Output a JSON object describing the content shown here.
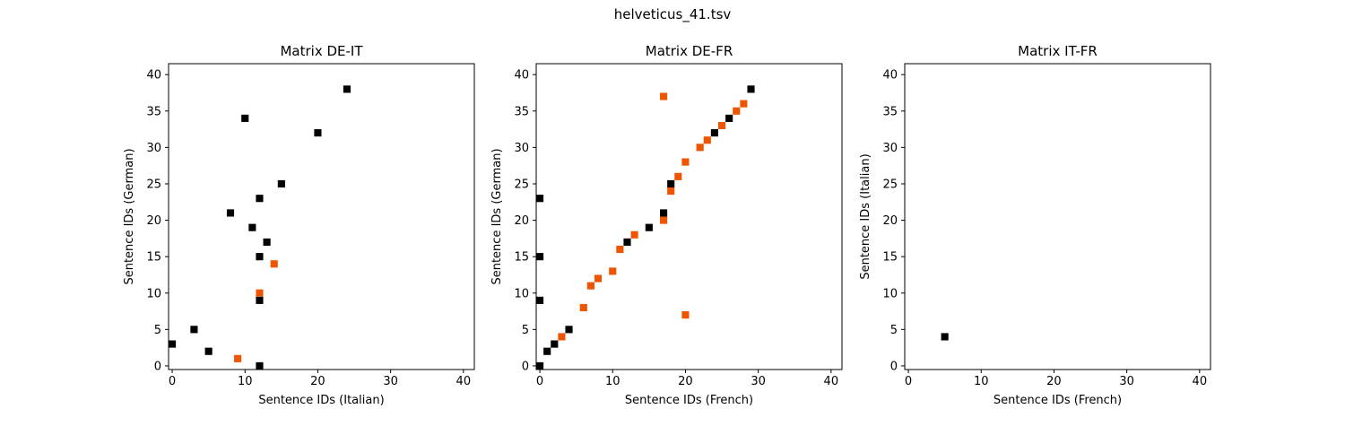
{
  "figure_title": "helveticus_41.tsv",
  "colors": {
    "black": "#000000",
    "orange": "#ee5500",
    "axes": "#000000"
  },
  "chart_data": [
    {
      "type": "scatter",
      "title": "Matrix DE-IT",
      "xlabel": "Sentence IDs (Italian)",
      "ylabel": "Sentence IDs (German)",
      "xlim": [
        -0.5,
        41.5
      ],
      "ylim": [
        41.5,
        -0.5
      ],
      "xticks": [
        0,
        10,
        20,
        30,
        40
      ],
      "yticks": [
        0,
        5,
        10,
        15,
        20,
        25,
        30,
        35,
        40
      ],
      "grid": false,
      "series": [
        {
          "color": "black",
          "points": [
            [
              12,
              0
            ],
            [
              5,
              2
            ],
            [
              0,
              3
            ],
            [
              3,
              5
            ],
            [
              12,
              9
            ],
            [
              12,
              15
            ],
            [
              13,
              17
            ],
            [
              11,
              19
            ],
            [
              8,
              21
            ],
            [
              12,
              23
            ],
            [
              15,
              25
            ],
            [
              20,
              32
            ],
            [
              10,
              34
            ],
            [
              24,
              38
            ]
          ]
        },
        {
          "color": "orange",
          "points": [
            [
              9,
              1
            ],
            [
              12,
              10
            ],
            [
              14,
              14
            ]
          ]
        }
      ]
    },
    {
      "type": "scatter",
      "title": "Matrix DE-FR",
      "xlabel": "Sentence IDs (French)",
      "ylabel": "Sentence IDs (German)",
      "xlim": [
        -0.5,
        41.5
      ],
      "ylim": [
        41.5,
        -0.5
      ],
      "xticks": [
        0,
        10,
        20,
        30,
        40
      ],
      "yticks": [
        0,
        5,
        10,
        15,
        20,
        25,
        30,
        35,
        40
      ],
      "grid": false,
      "series": [
        {
          "color": "black",
          "points": [
            [
              0,
              0
            ],
            [
              1,
              2
            ],
            [
              2,
              3
            ],
            [
              4,
              5
            ],
            [
              0,
              9
            ],
            [
              0,
              15
            ],
            [
              12,
              17
            ],
            [
              15,
              19
            ],
            [
              17,
              21
            ],
            [
              0,
              23
            ],
            [
              18,
              25
            ],
            [
              24,
              32
            ],
            [
              26,
              34
            ],
            [
              29,
              38
            ]
          ]
        },
        {
          "color": "orange",
          "points": [
            [
              3,
              4
            ],
            [
              20,
              7
            ],
            [
              6,
              8
            ],
            [
              7,
              11
            ],
            [
              8,
              12
            ],
            [
              10,
              13
            ],
            [
              11,
              16
            ],
            [
              13,
              18
            ],
            [
              17,
              20
            ],
            [
              18,
              24
            ],
            [
              19,
              26
            ],
            [
              20,
              28
            ],
            [
              22,
              30
            ],
            [
              23,
              31
            ],
            [
              25,
              33
            ],
            [
              27,
              35
            ],
            [
              28,
              36
            ],
            [
              17,
              37
            ]
          ]
        }
      ]
    },
    {
      "type": "scatter",
      "title": "Matrix IT-FR",
      "xlabel": "Sentence IDs (French)",
      "ylabel": "Sentence IDs (Italian)",
      "xlim": [
        -0.5,
        41.5
      ],
      "ylim": [
        41.5,
        -0.5
      ],
      "xticks": [
        0,
        10,
        20,
        30,
        40
      ],
      "yticks": [
        0,
        5,
        10,
        15,
        20,
        25,
        30,
        35,
        40
      ],
      "grid": false,
      "series": [
        {
          "color": "black",
          "points": [
            [
              5,
              4
            ]
          ]
        }
      ]
    }
  ]
}
